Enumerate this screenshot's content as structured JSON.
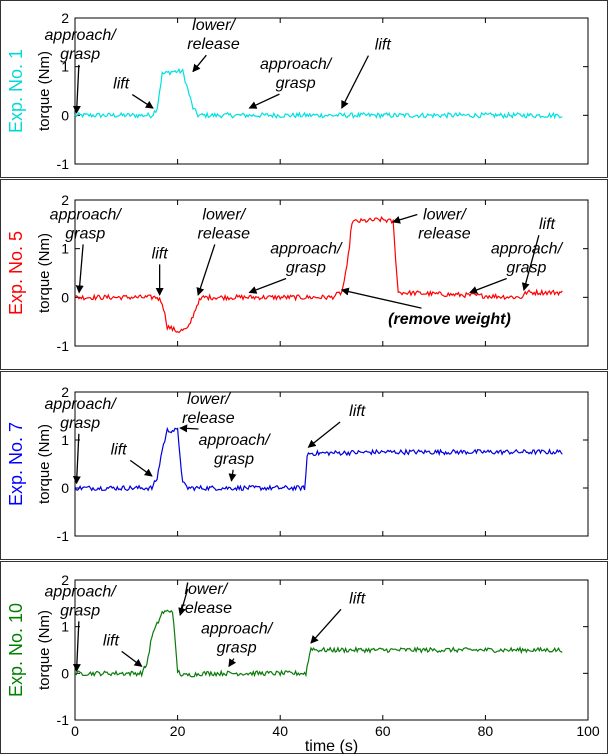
{
  "chart_data": [
    {
      "type": "line",
      "panel_label": "Exp. No. 1",
      "label_color": "#00d8d8",
      "color": "#00e0e0",
      "ylabel": "torque (Nm)",
      "xlim": [
        0,
        100
      ],
      "ylim": [
        -1,
        2
      ],
      "yticks": [
        "-1",
        "0",
        "1",
        "2"
      ],
      "series": [
        {
          "x": [
            0,
            15,
            16,
            17,
            19,
            21,
            23,
            24,
            30,
            95
          ],
          "y": [
            0,
            0,
            0.15,
            0.85,
            0.9,
            0.9,
            0.15,
            0,
            0,
            0
          ]
        }
      ],
      "annotations": [
        {
          "lines": [
            "approach/",
            "grasp"
          ],
          "tx": 1,
          "ty": 1.55,
          "ax": 0.3,
          "ay": 0.05
        },
        {
          "lines": [
            "lift"
          ],
          "tx": 9,
          "ty": 0.55,
          "ax": 15.2,
          "ay": 0.15
        },
        {
          "lines": [
            "lower/",
            "release"
          ],
          "tx": 27,
          "ty": 1.75,
          "ax": 23,
          "ay": 0.9
        },
        {
          "lines": [
            "approach/",
            "grasp"
          ],
          "tx": 43,
          "ty": 0.95,
          "ax": 34,
          "ay": 0.15
        },
        {
          "lines": [
            "lift"
          ],
          "tx": 60,
          "ty": 1.35,
          "ax": 52,
          "ay": 0.15
        }
      ]
    },
    {
      "type": "line",
      "panel_label": "Exp. No. 5",
      "label_color": "#ff0000",
      "color": "#ff0000",
      "ylabel": "torque (Nm)",
      "xlim": [
        0,
        100
      ],
      "ylim": [
        -1,
        2
      ],
      "yticks": [
        "-1",
        "0",
        "1",
        "2"
      ],
      "series": [
        {
          "x": [
            0,
            16,
            17,
            18,
            20,
            22,
            24,
            25,
            50,
            52,
            53,
            54,
            60,
            62,
            63,
            87,
            88,
            95
          ],
          "y": [
            0,
            0,
            -0.1,
            -0.6,
            -0.7,
            -0.65,
            -0.1,
            0,
            0,
            0.1,
            0.6,
            1.55,
            1.6,
            1.55,
            0.1,
            0,
            0.1,
            0.1
          ]
        }
      ],
      "annotations": [
        {
          "lines": [
            "approach/",
            "grasp"
          ],
          "tx": 2,
          "ty": 1.6,
          "ax": 0.8,
          "ay": 0.1
        },
        {
          "lines": [
            "lift"
          ],
          "tx": 16.5,
          "ty": 0.8,
          "ax": 16.5,
          "ay": 0.05
        },
        {
          "lines": [
            "lower/",
            "release"
          ],
          "tx": 29,
          "ty": 1.6,
          "ax": 24,
          "ay": 0.05
        },
        {
          "lines": [
            "approach/",
            "grasp"
          ],
          "tx": 45,
          "ty": 0.9,
          "ax": 34,
          "ay": 0.1
        },
        {
          "lines": [
            "lower/",
            "release"
          ],
          "tx": 72,
          "ty": 1.6,
          "ax": 62,
          "ay": 1.55
        },
        {
          "lines": [
            "approach/",
            "grasp"
          ],
          "tx": 88,
          "ty": 0.9,
          "ax": 77,
          "ay": 0.1
        },
        {
          "lines": [
            "lift"
          ],
          "tx": 92,
          "ty": 1.4,
          "ax": 87.5,
          "ay": 0.15
        },
        {
          "lines": [
            "(remove weight)"
          ],
          "tx": 73,
          "ty": -0.55,
          "ax": 52,
          "ay": 0.15,
          "bold": true
        }
      ]
    },
    {
      "type": "line",
      "panel_label": "Exp. No. 7",
      "label_color": "#0000ff",
      "color": "#0000dd",
      "ylabel": "torque (Nm)",
      "xlim": [
        0,
        100
      ],
      "ylim": [
        -1,
        2
      ],
      "yticks": [
        "-1",
        "0",
        "1",
        "2"
      ],
      "series": [
        {
          "x": [
            0,
            15,
            16,
            17,
            18,
            20,
            21,
            22,
            44,
            44.8,
            45.3,
            60,
            95
          ],
          "y": [
            0,
            0,
            0.2,
            0.8,
            1.2,
            1.2,
            0.1,
            0,
            0,
            0,
            0.72,
            0.75,
            0.75
          ]
        }
      ],
      "annotations": [
        {
          "lines": [
            "approach/",
            "grasp"
          ],
          "tx": 1,
          "ty": 1.65,
          "ax": 0.3,
          "ay": 0.1
        },
        {
          "lines": [
            "lift"
          ],
          "tx": 8.5,
          "ty": 0.7,
          "ax": 15,
          "ay": 0.25
        },
        {
          "lines": [
            "lower/",
            "release"
          ],
          "tx": 26,
          "ty": 1.75,
          "ax": 20.5,
          "ay": 1.25
        },
        {
          "lines": [
            "approach/",
            "grasp"
          ],
          "tx": 31,
          "ty": 0.9,
          "ax": 30.5,
          "ay": 0.15
        },
        {
          "lines": [
            "lift"
          ],
          "tx": 55,
          "ty": 1.5,
          "ax": 45.5,
          "ay": 0.85
        }
      ]
    },
    {
      "type": "line",
      "panel_label": "Exp. No. 10",
      "label_color": "#008000",
      "color": "#0a7a0a",
      "ylabel": "torque (Nm)",
      "xlim": [
        0,
        100
      ],
      "ylim": [
        -1,
        2
      ],
      "yticks": [
        "-1",
        "0",
        "1",
        "2"
      ],
      "xticks": [
        "0",
        "20",
        "40",
        "60",
        "80",
        "100"
      ],
      "xlabel": "time (s)",
      "series": [
        {
          "x": [
            0,
            13,
            14,
            15,
            17,
            19,
            20,
            21,
            25,
            45,
            46,
            47,
            95
          ],
          "y": [
            0,
            0,
            0.2,
            0.8,
            1.3,
            1.35,
            0.05,
            -0.05,
            0,
            0,
            0.55,
            0.5,
            0.5
          ]
        }
      ],
      "annotations": [
        {
          "lines": [
            "approach/",
            "grasp"
          ],
          "tx": 1,
          "ty": 1.65,
          "ax": 0.3,
          "ay": 0.05
        },
        {
          "lines": [
            "lift"
          ],
          "tx": 7,
          "ty": 0.6,
          "ax": 13,
          "ay": 0.15
        },
        {
          "lines": [
            "lower/",
            "release"
          ],
          "tx": 25.5,
          "ty": 1.7,
          "ax": 20.5,
          "ay": 1.25
        },
        {
          "lines": [
            "approach/",
            "grasp"
          ],
          "tx": 31.5,
          "ty": 0.85,
          "ax": 30,
          "ay": 0.15
        },
        {
          "lines": [
            "lift"
          ],
          "tx": 55,
          "ty": 1.5,
          "ax": 46,
          "ay": 0.65
        }
      ]
    }
  ]
}
